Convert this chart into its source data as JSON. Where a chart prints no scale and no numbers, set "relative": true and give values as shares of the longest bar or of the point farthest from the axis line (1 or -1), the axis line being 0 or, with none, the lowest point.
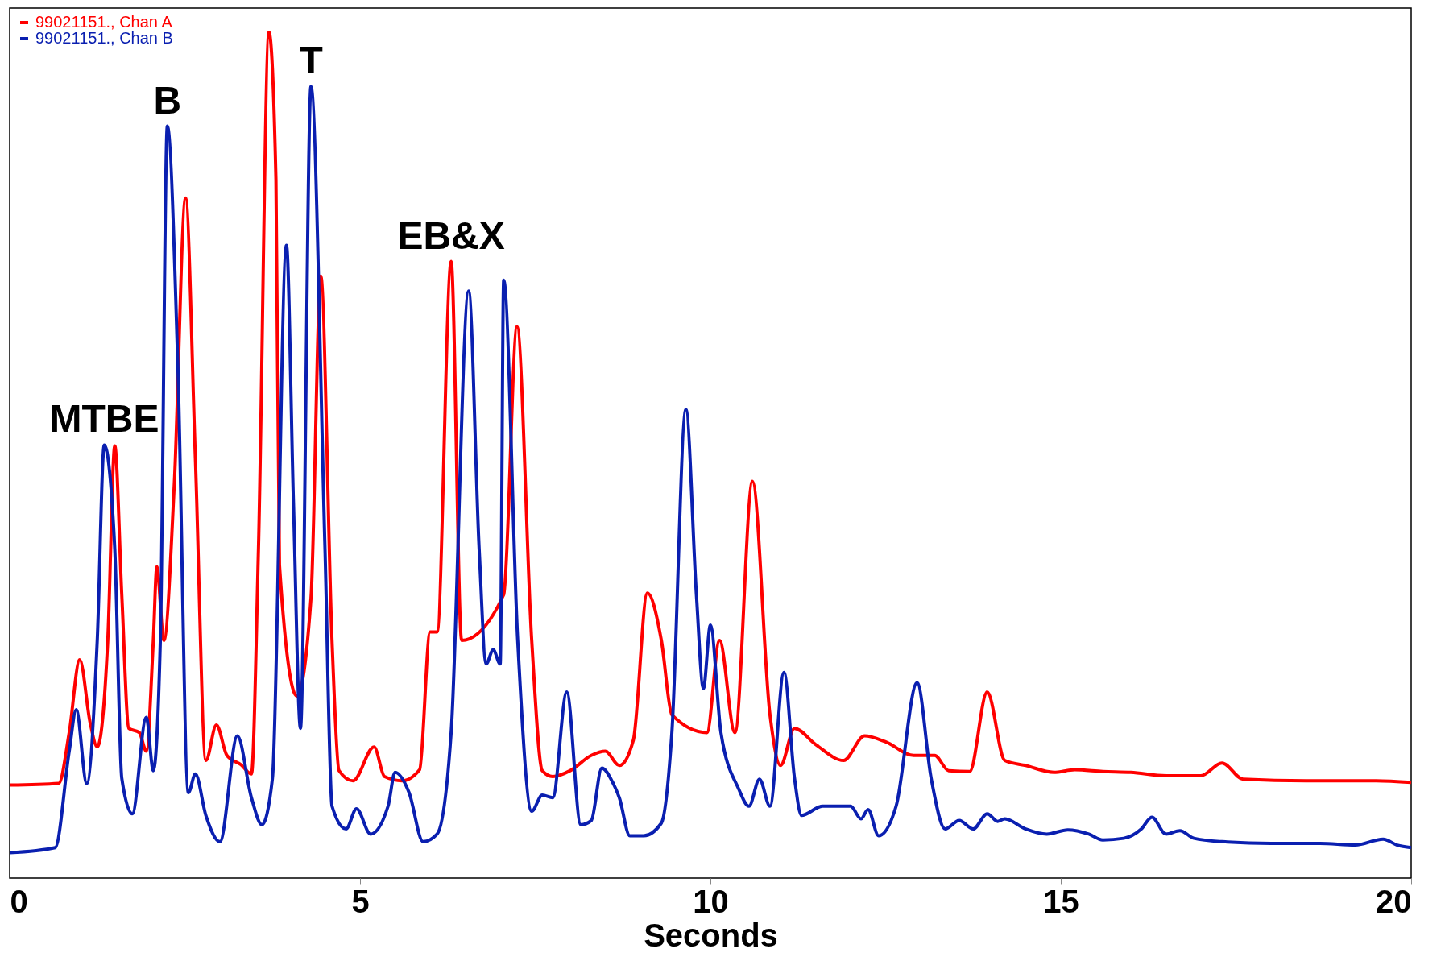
{
  "chart_data": {
    "type": "line",
    "relative": true,
    "xlabel": "Seconds",
    "xlim": [
      0,
      20
    ],
    "xticks": [
      0,
      5,
      10,
      15,
      20
    ],
    "legend": "top left",
    "x": [
      0,
      0.7,
      0.85,
      1.0,
      1.15,
      1.25,
      1.4,
      1.5,
      1.6,
      1.7,
      1.85,
      1.95,
      2.05,
      2.1,
      2.2,
      2.35,
      2.51,
      2.65,
      2.8,
      2.95,
      3.1,
      3.3,
      3.45,
      3.55,
      3.7,
      3.8,
      3.85,
      4.1,
      4.3,
      4.44,
      4.6,
      4.7,
      4.9,
      5.2,
      5.35,
      5.6,
      5.85,
      6.0,
      6.1,
      6.3,
      6.45,
      7.05,
      7.24,
      7.45,
      7.6,
      7.75,
      8.0,
      8.3,
      8.5,
      8.7,
      8.9,
      9.1,
      9.3,
      9.45,
      9.95,
      10.13,
      10.35,
      10.6,
      10.85,
      11.0,
      11.2,
      11.5,
      11.9,
      12.2,
      12.5,
      12.9,
      13.2,
      13.4,
      13.7,
      13.95,
      14.2,
      14.5,
      14.9,
      15.2,
      15.6,
      16.0,
      16.5,
      17.0,
      17.3,
      17.6,
      18.5,
      19.5,
      20
    ],
    "series": [
      {
        "name": "99021151., Chan A",
        "color": "#ff0000",
        "values": [
          0.11,
          0.112,
          0.172,
          0.258,
          0.183,
          0.155,
          0.281,
          0.511,
          0.335,
          0.177,
          0.172,
          0.15,
          0.281,
          0.368,
          0.281,
          0.467,
          0.804,
          0.496,
          0.139,
          0.181,
          0.145,
          0.134,
          0.123,
          0.389,
          1.0,
          0.825,
          0.37,
          0.215,
          0.331,
          0.712,
          0.281,
          0.127,
          0.115,
          0.155,
          0.12,
          0.115,
          0.128,
          0.291,
          0.291,
          0.729,
          0.281,
          0.335,
          0.652,
          0.281,
          0.127,
          0.12,
          0.127,
          0.145,
          0.15,
          0.133,
          0.163,
          0.337,
          0.281,
          0.193,
          0.172,
          0.281,
          0.172,
          0.469,
          0.193,
          0.133,
          0.177,
          0.158,
          0.139,
          0.168,
          0.161,
          0.145,
          0.145,
          0.127,
          0.126,
          0.22,
          0.139,
          0.133,
          0.125,
          0.128,
          0.126,
          0.125,
          0.121,
          0.121,
          0.136,
          0.117,
          0.115,
          0.115,
          0.113
        ]
      },
      {
        "name": "99021151., Chan B",
        "color": "#0a1fb0",
        "x": [
          0,
          0.65,
          0.85,
          0.95,
          1.1,
          1.25,
          1.35,
          1.5,
          1.6,
          1.75,
          1.95,
          2.05,
          2.15,
          2.25,
          2.4,
          2.55,
          2.65,
          2.8,
          3.0,
          3.25,
          3.45,
          3.6,
          3.75,
          3.95,
          4.05,
          4.15,
          4.3,
          4.5,
          4.6,
          4.8,
          4.95,
          5.15,
          5.4,
          5.5,
          5.7,
          5.9,
          6.1,
          6.3,
          6.55,
          6.7,
          6.8,
          6.9,
          7.0,
          7.05,
          7.25,
          7.45,
          7.6,
          7.75,
          7.95,
          8.15,
          8.3,
          8.45,
          8.6,
          8.7,
          8.85,
          9.05,
          9.3,
          9.45,
          9.65,
          9.8,
          9.9,
          10.0,
          10.15,
          10.4,
          10.55,
          10.7,
          10.85,
          11.05,
          11.2,
          11.3,
          11.6,
          12.0,
          12.15,
          12.25,
          12.4,
          12.65,
          12.95,
          13.15,
          13.35,
          13.55,
          13.75,
          13.95,
          14.1,
          14.2,
          14.5,
          14.8,
          15.1,
          15.4,
          15.6,
          15.9,
          16.15,
          16.3,
          16.5,
          16.7,
          16.9,
          17.3,
          18.0,
          18.7,
          19.2,
          19.6,
          19.8,
          20
        ],
        "values": [
          0.03,
          0.036,
          0.15,
          0.199,
          0.112,
          0.281,
          0.512,
          0.389,
          0.118,
          0.076,
          0.19,
          0.127,
          0.281,
          0.889,
          0.606,
          0.101,
          0.123,
          0.074,
          0.043,
          0.168,
          0.095,
          0.063,
          0.118,
          0.748,
          0.443,
          0.177,
          0.936,
          0.389,
          0.085,
          0.058,
          0.082,
          0.052,
          0.085,
          0.125,
          0.101,
          0.043,
          0.052,
          0.172,
          0.694,
          0.389,
          0.253,
          0.27,
          0.253,
          0.707,
          0.281,
          0.079,
          0.098,
          0.095,
          0.22,
          0.063,
          0.068,
          0.13,
          0.114,
          0.095,
          0.05,
          0.05,
          0.065,
          0.172,
          0.554,
          0.335,
          0.224,
          0.299,
          0.172,
          0.106,
          0.085,
          0.117,
          0.085,
          0.243,
          0.118,
          0.074,
          0.085,
          0.085,
          0.07,
          0.081,
          0.05,
          0.085,
          0.231,
          0.118,
          0.058,
          0.068,
          0.058,
          0.076,
          0.067,
          0.07,
          0.058,
          0.052,
          0.057,
          0.052,
          0.045,
          0.047,
          0.058,
          0.072,
          0.052,
          0.056,
          0.047,
          0.043,
          0.041,
          0.041,
          0.039,
          0.046,
          0.039,
          0.036
        ]
      }
    ],
    "annotations": [
      {
        "text": "MTBE",
        "x": 1.35,
        "y": 0.512
      },
      {
        "text": "B",
        "x": 2.25,
        "y": 0.889
      },
      {
        "text": "T",
        "x": 4.3,
        "y": 0.936
      },
      {
        "text": "EB&X",
        "x": 6.3,
        "y": 0.729
      }
    ]
  }
}
